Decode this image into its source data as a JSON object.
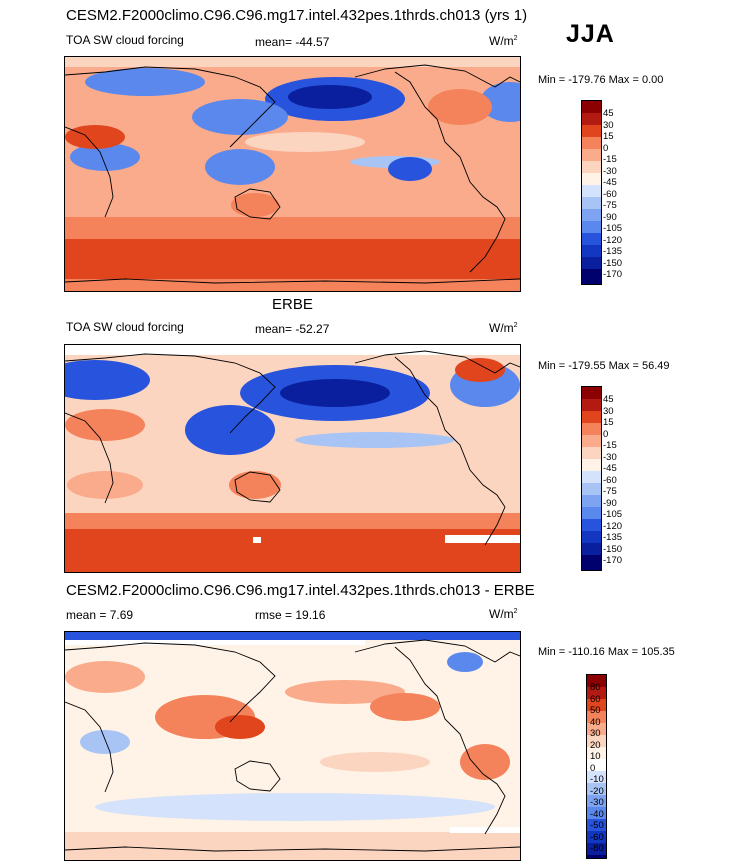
{
  "season": "JJA",
  "palette_colors": {
    "red_dark": "#8b0000",
    "red": "#e0451d",
    "orange": "#f4825a",
    "salmon": "#f9ab8c",
    "peach": "#fcd5c0",
    "cream": "#fff2e6",
    "pale_blue": "#d4e2fb",
    "light_blue": "#a7c4f5",
    "mid_blue": "#5b88ec",
    "blue": "#2753dd",
    "deep_blue": "#0a1f9e",
    "navy": "#00006e"
  },
  "panels": [
    {
      "title": "CESM2.F2000climo.C96.C96.mg17.intel.432pes.1thrds.ch013 (yrs 1)",
      "left_label": "TOA SW cloud forcing",
      "center_label": "mean= -44.57",
      "units_label": "W/m",
      "units_sup": "2",
      "min_text": "Min = -179.76",
      "max_text": "Max =   0.00",
      "colorbar_ticks": [
        "45",
        "30",
        "15",
        "0",
        "-15",
        "-30",
        "-45",
        "-60",
        "-75",
        "-90",
        "-105",
        "-120",
        "-135",
        "-150",
        "-170"
      ]
    },
    {
      "title": "ERBE",
      "left_label": "TOA SW cloud forcing",
      "center_label": "mean= -52.27",
      "units_label": "W/m",
      "units_sup": "2",
      "min_text": "Min = -179.55",
      "max_text": "Max = 56.49",
      "colorbar_ticks": [
        "45",
        "30",
        "15",
        "0",
        "-15",
        "-30",
        "-45",
        "-60",
        "-75",
        "-90",
        "-105",
        "-120",
        "-135",
        "-150",
        "-170"
      ]
    },
    {
      "title": "CESM2.F2000climo.C96.C96.mg17.intel.432pes.1thrds.ch013 - ERBE",
      "left_label": "mean =   7.69",
      "center_label": "rmse =  19.16",
      "units_label": "W/m",
      "units_sup": "2",
      "min_text": "Min = -110.16",
      "max_text": "Max = 105.35",
      "colorbar_ticks": [
        "80",
        "60",
        "50",
        "40",
        "30",
        "20",
        "10",
        "0",
        "-10",
        "-20",
        "-30",
        "-40",
        "-50",
        "-60",
        "-80"
      ]
    }
  ]
}
